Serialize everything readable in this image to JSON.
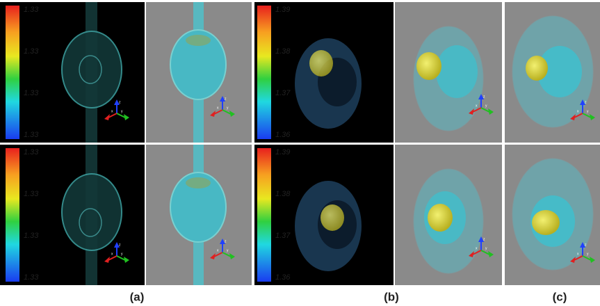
{
  "panels": [
    {
      "caption": "(a)",
      "rows": [
        {
          "colorbar_labels": [
            "1.33",
            "1.33",
            "1.33",
            "1.33"
          ]
        },
        {
          "colorbar_labels": [
            "1.33",
            "1.33",
            "1.33",
            "1.33"
          ]
        }
      ]
    },
    {
      "caption": "(b)",
      "rows": [
        {
          "colorbar_labels": [
            "1.39",
            "1.38",
            "1.37",
            "1.36"
          ]
        },
        {
          "colorbar_labels": [
            "1.39",
            "1.38",
            "1.37",
            "1.36"
          ]
        }
      ]
    },
    {
      "caption": "(c)"
    }
  ],
  "axis_labels": [
    "x",
    "y",
    "z"
  ]
}
